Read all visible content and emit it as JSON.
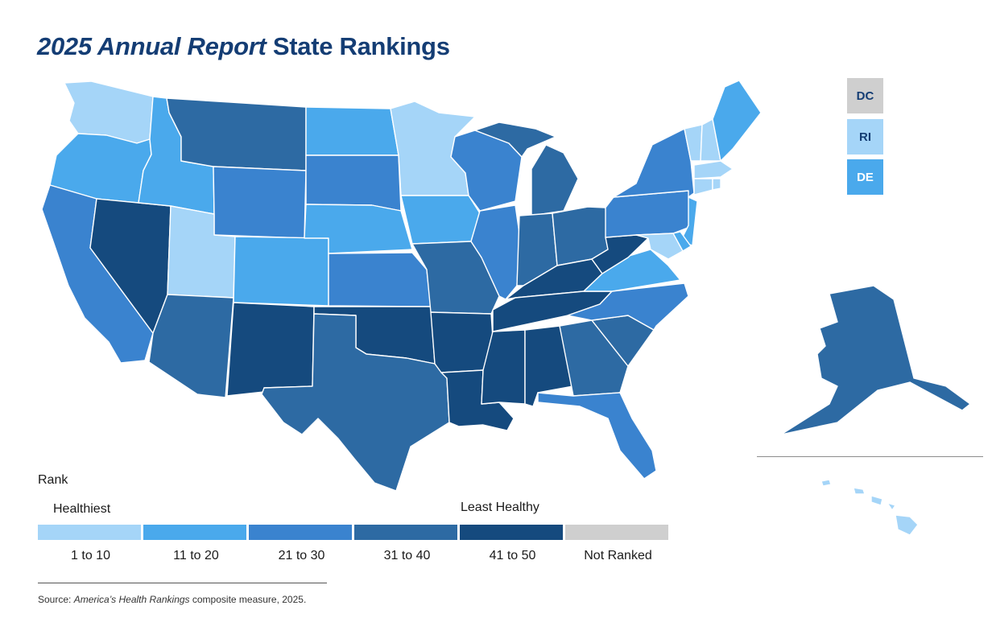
{
  "title": {
    "italic_part": "2025 Annual Report",
    "regular_part": " State Rankings"
  },
  "colors": {
    "tier_1_10": "#a5d5f8",
    "tier_11_20": "#4aa9ec",
    "tier_21_30": "#3a83cf",
    "tier_31_40": "#2d6aa3",
    "tier_41_50": "#154a7e",
    "not_ranked": "#cfcfcf",
    "title_color": "#143d74"
  },
  "legend": {
    "title": "Rank",
    "healthiest_label": "Healthiest",
    "least_healthy_label": "Least Healthy",
    "categories": [
      "1 to 10",
      "11 to 20",
      "21 to 30",
      "31 to 40",
      "41 to 50",
      "Not Ranked"
    ]
  },
  "small_state_boxes": [
    {
      "abbr": "DC",
      "tier": "not_ranked"
    },
    {
      "abbr": "RI",
      "tier": "tier_1_10"
    },
    {
      "abbr": "DE",
      "tier": "tier_11_20"
    }
  ],
  "state_tiers": {
    "WA": "tier_1_10",
    "OR": "tier_11_20",
    "CA": "tier_21_30",
    "NV": "tier_41_50",
    "ID": "tier_11_20",
    "MT": "tier_31_40",
    "WY": "tier_21_30",
    "UT": "tier_1_10",
    "AZ": "tier_31_40",
    "CO": "tier_11_20",
    "NM": "tier_41_50",
    "ND": "tier_11_20",
    "SD": "tier_21_30",
    "NE": "tier_11_20",
    "KS": "tier_21_30",
    "OK": "tier_41_50",
    "TX": "tier_31_40",
    "MN": "tier_1_10",
    "IA": "tier_11_20",
    "MO": "tier_31_40",
    "AR": "tier_41_50",
    "LA": "tier_41_50",
    "WI": "tier_21_30",
    "IL": "tier_21_30",
    "MI": "tier_31_40",
    "IN": "tier_31_40",
    "OH": "tier_31_40",
    "KY": "tier_41_50",
    "TN": "tier_41_50",
    "MS": "tier_41_50",
    "AL": "tier_41_50",
    "GA": "tier_31_40",
    "FL": "tier_21_30",
    "SC": "tier_31_40",
    "NC": "tier_21_30",
    "VA": "tier_11_20",
    "WV": "tier_41_50",
    "PA": "tier_21_30",
    "NY": "tier_21_30",
    "NJ": "tier_11_20",
    "MD": "tier_1_10",
    "DE": "tier_11_20",
    "CT": "tier_1_10",
    "RI": "tier_1_10",
    "MA": "tier_1_10",
    "VT": "tier_1_10",
    "NH": "tier_1_10",
    "ME": "tier_11_20",
    "AK": "tier_31_40",
    "HI": "tier_1_10"
  },
  "source": {
    "prefix": "Source: ",
    "italic_part": "America’s Health Rankings",
    "suffix": " composite measure, 2025."
  }
}
